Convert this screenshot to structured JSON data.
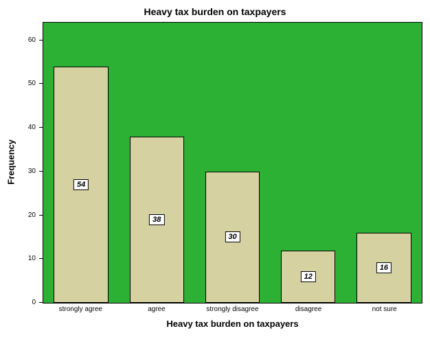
{
  "chart_data": {
    "type": "bar",
    "title": "Heavy tax burden on taxpayers",
    "xlabel": "Heavy tax burden on taxpayers",
    "ylabel": "Frequency",
    "categories": [
      "strongly agree",
      "agree",
      "strongly disagree",
      "disagree",
      "not sure"
    ],
    "values": [
      54,
      38,
      30,
      12,
      16
    ],
    "bar_labels": [
      "54",
      "38",
      "30",
      "12",
      "16"
    ],
    "yticks": [
      0,
      10,
      20,
      30,
      40,
      50,
      60
    ],
    "ylim": [
      0,
      64
    ],
    "grid": false,
    "legend": "none",
    "colors": {
      "plot_background": "#2db135",
      "bar_fill": "#d6d1a1",
      "bar_border": "#000000",
      "label_box_background": "#ffffff"
    }
  }
}
